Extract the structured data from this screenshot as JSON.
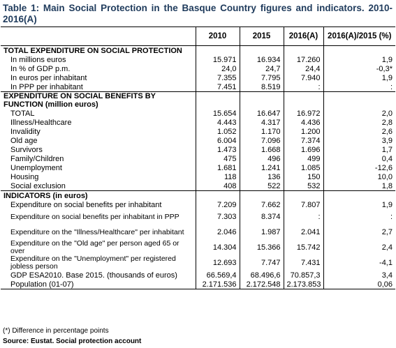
{
  "title": "Table 1: Main Social Protection in the Basque Country figures and indicators. 2010-2016(A)",
  "columns": [
    "",
    "2010",
    "2015",
    "2016(A)",
    "2016(A)/2015 (%)"
  ],
  "rows": [
    {
      "label": "TOTAL EXPENDITURE ON SOCIAL PROTECTION",
      "v2010": "",
      "v2015": "",
      "v2016": "",
      "var": "",
      "type": "section"
    },
    {
      "label": "In millions euros",
      "v2010": "15.971",
      "v2015": "16.934",
      "v2016": "17.260",
      "var": "1,9",
      "type": "item"
    },
    {
      "label": "In % of GDP p.m.",
      "v2010": "24,0",
      "v2015": "24,7",
      "v2016": "24,4",
      "var": "-0,3*",
      "type": "item"
    },
    {
      "label": "In euros per inhabitant",
      "v2010": "7.355",
      "v2015": "7.795",
      "v2016": "7.940",
      "var": "1,9",
      "type": "item"
    },
    {
      "label": "In PPP per inhabitant",
      "v2010": "7.451",
      "v2015": "8.519",
      "v2016": ":",
      "var": ":",
      "type": "item"
    },
    {
      "label": "EXPENDITURE ON SOCIAL BENEFITS BY FUNCTION (million euros)",
      "v2010": "",
      "v2015": "",
      "v2016": "",
      "var": "",
      "type": "section2"
    },
    {
      "label": "TOTAL",
      "v2010": "15.654",
      "v2015": "16.647",
      "v2016": "16.972",
      "var": "2,0",
      "type": "item"
    },
    {
      "label": "Illness/Healthcare",
      "v2010": "4.443",
      "v2015": "4.317",
      "v2016": "4.436",
      "var": "2,8",
      "type": "item"
    },
    {
      "label": "Invalidity",
      "v2010": "1.052",
      "v2015": "1.170",
      "v2016": "1.200",
      "var": "2,6",
      "type": "item"
    },
    {
      "label": "Old age",
      "v2010": "6.004",
      "v2015": "7.096",
      "v2016": "7.374",
      "var": "3,9",
      "type": "item"
    },
    {
      "label": "Survivors",
      "v2010": "1.473",
      "v2015": "1.668",
      "v2016": "1.696",
      "var": "1,7",
      "type": "item"
    },
    {
      "label": "Family/Children",
      "v2010": "475",
      "v2015": "496",
      "v2016": "499",
      "var": "0,4",
      "type": "item"
    },
    {
      "label": "Unemployment",
      "v2010": "1.681",
      "v2015": "1.241",
      "v2016": "1.085",
      "var": "-12,6",
      "type": "item"
    },
    {
      "label": "Housing",
      "v2010": "118",
      "v2015": "136",
      "v2016": "150",
      "var": "10,0",
      "type": "item"
    },
    {
      "label": "Social exclusion",
      "v2010": "408",
      "v2015": "522",
      "v2016": "532",
      "var": "1,8",
      "type": "item"
    },
    {
      "label": "INDICATORS (in euros)",
      "v2010": "",
      "v2015": "",
      "v2016": "",
      "var": "",
      "type": "section"
    },
    {
      "label": "Expenditure on social benefits per inhabitant",
      "v2010": "7.209",
      "v2015": "7.662",
      "v2016": "7.807",
      "var": "1,9",
      "type": "item"
    },
    {
      "label": "Expenditure on social benefits per inhabitant in PPP",
      "v2010": "7.303",
      "v2015": "8.374",
      "v2016": ":",
      "var": ":",
      "type": "item2"
    },
    {
      "label": "Expenditure on the \"Illness/Healthcare\" per inhabitant",
      "v2010": "2.046",
      "v2015": "1.987",
      "v2016": "2.041",
      "var": "2,7",
      "type": "item2"
    },
    {
      "label": "Expenditure on the \"Old age\" per person aged 65 or over",
      "v2010": "14.304",
      "v2015": "15.366",
      "v2016": "15.742",
      "var": "2,4",
      "type": "item2"
    },
    {
      "label": "Expenditure on the \"Unemployment\" per registered jobless person",
      "v2010": "12.693",
      "v2015": "7.747",
      "v2016": "7.431",
      "var": "-4,1",
      "type": "item2"
    },
    {
      "label": "GDP ESA2010. Base 2015. (thousands of euros)",
      "v2010": "66.569,4",
      "v2015": "68.496,6",
      "v2016": "70.857,3",
      "var": "3,4",
      "type": "item"
    },
    {
      "label": "Population (01-07)",
      "v2010": "2.171.536",
      "v2015": "2.172.548",
      "v2016": "2.173.853",
      "var": "0,06",
      "type": "item"
    }
  ],
  "footnote": "(*) Difference in percentage points",
  "source": "Source: Eustat. Social protection account"
}
